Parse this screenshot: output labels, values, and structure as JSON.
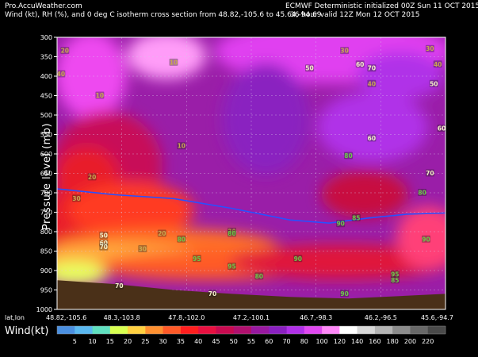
{
  "header": {
    "site": "Pro.AccuWeather.com",
    "subtitle": "Wind (kt), RH (%), and 0 deg C isotherm cross section from 48.82,-105.6 to 45.64,-94.69",
    "model": "ECMWF Deterministic initialized 00Z Sun 11 OCT 2015",
    "valid": "36 hour valid 12Z Mon 12 OCT 2015"
  },
  "chart_data": {
    "type": "heatmap",
    "ylabel": "Pressure level (mb)",
    "y_ticks": [
      300,
      350,
      400,
      450,
      500,
      550,
      600,
      650,
      700,
      750,
      800,
      850,
      900,
      950,
      1000
    ],
    "ylim": [
      1000,
      300
    ],
    "x_label": "lat,lon",
    "x_ticks": [
      "48.82,-105.6",
      "48.3,-103.8",
      "47.8,-102.0",
      "47.2,-100.1",
      "46.7,-98.3",
      "46.2,-96.5",
      "45.6,-94.7"
    ],
    "colorbar": {
      "label": "Wind(kt)",
      "ticks": [
        5,
        10,
        15,
        20,
        25,
        30,
        35,
        40,
        45,
        50,
        55,
        60,
        70,
        80,
        100,
        120,
        140,
        160,
        180,
        200,
        220
      ],
      "colors": [
        "#4a8fe0",
        "#5ab8f0",
        "#60e0c0",
        "#d8ff50",
        "#ffd040",
        "#ff9030",
        "#ff5a28",
        "#ff1e1e",
        "#e81040",
        "#c80a50",
        "#b0106e",
        "#9818a0",
        "#8a20c0",
        "#b030e8",
        "#e048f0",
        "#ff88f8",
        "#ffffff",
        "#d8d8d8",
        "#b4b4b4",
        "#8c8c8c",
        "#686868",
        "#4a4a4a"
      ]
    },
    "rh_contour_labels": [
      {
        "label": "10",
        "p": 365,
        "pos": 0.3
      },
      {
        "label": "10",
        "p": 450,
        "pos": 0.11
      },
      {
        "label": "10",
        "p": 580,
        "pos": 0.32
      },
      {
        "label": "20",
        "p": 335,
        "pos": 0.02
      },
      {
        "label": "20",
        "p": 660,
        "pos": 0.09
      },
      {
        "label": "20",
        "p": 805,
        "pos": 0.27
      },
      {
        "label": "30",
        "p": 335,
        "pos": 0.74
      },
      {
        "label": "30",
        "p": 715,
        "pos": 0.05
      },
      {
        "label": "30",
        "p": 845,
        "pos": 0.22
      },
      {
        "label": "30",
        "p": 800,
        "pos": 0.45
      },
      {
        "label": "30",
        "p": 330,
        "pos": 0.96
      },
      {
        "label": "40",
        "p": 395,
        "pos": 0.01
      },
      {
        "label": "40",
        "p": 420,
        "pos": 0.81
      },
      {
        "label": "40",
        "p": 370,
        "pos": 0.98
      },
      {
        "label": "50",
        "p": 380,
        "pos": 0.65
      },
      {
        "label": "50",
        "p": 420,
        "pos": 0.97
      },
      {
        "label": "50",
        "p": 810,
        "pos": 0.12
      },
      {
        "label": "60",
        "p": 370,
        "pos": 0.78
      },
      {
        "label": "60",
        "p": 830,
        "pos": 0.12
      },
      {
        "label": "60",
        "p": 560,
        "pos": 0.81
      },
      {
        "label": "60",
        "p": 535,
        "pos": 0.99
      },
      {
        "label": "70",
        "p": 380,
        "pos": 0.81
      },
      {
        "label": "70",
        "p": 840,
        "pos": 0.12
      },
      {
        "label": "70",
        "p": 650,
        "pos": 0.96
      },
      {
        "label": "70",
        "p": 940,
        "pos": 0.16
      },
      {
        "label": "70",
        "p": 960,
        "pos": 0.4
      },
      {
        "label": "80",
        "p": 820,
        "pos": 0.32
      },
      {
        "label": "80",
        "p": 805,
        "pos": 0.45
      },
      {
        "label": "80",
        "p": 605,
        "pos": 0.75
      },
      {
        "label": "80",
        "p": 700,
        "pos": 0.94
      },
      {
        "label": "80",
        "p": 915,
        "pos": 0.52
      },
      {
        "label": "90",
        "p": 780,
        "pos": 0.73
      },
      {
        "label": "90",
        "p": 870,
        "pos": 0.62
      },
      {
        "label": "90",
        "p": 960,
        "pos": 0.74
      },
      {
        "label": "90",
        "p": 820,
        "pos": 0.95
      },
      {
        "label": "85",
        "p": 765,
        "pos": 0.77
      },
      {
        "label": "95",
        "p": 870,
        "pos": 0.36
      },
      {
        "label": "95",
        "p": 890,
        "pos": 0.45
      },
      {
        "label": "95",
        "p": 910,
        "pos": 0.87
      },
      {
        "label": "85",
        "p": 925,
        "pos": 0.87
      }
    ],
    "isotherm_0C": [
      {
        "pos": 0.0,
        "p": 690
      },
      {
        "pos": 0.15,
        "p": 705
      },
      {
        "pos": 0.3,
        "p": 715
      },
      {
        "pos": 0.45,
        "p": 740
      },
      {
        "pos": 0.6,
        "p": 770
      },
      {
        "pos": 0.7,
        "p": 778
      },
      {
        "pos": 0.8,
        "p": 765
      },
      {
        "pos": 0.9,
        "p": 755
      },
      {
        "pos": 1.0,
        "p": 752
      }
    ],
    "terrain_top": [
      {
        "pos": 0.0,
        "p": 925
      },
      {
        "pos": 0.15,
        "p": 935
      },
      {
        "pos": 0.3,
        "p": 950
      },
      {
        "pos": 0.45,
        "p": 960
      },
      {
        "pos": 0.6,
        "p": 968
      },
      {
        "pos": 0.75,
        "p": 972
      },
      {
        "pos": 0.9,
        "p": 965
      },
      {
        "pos": 1.0,
        "p": 960
      }
    ]
  }
}
